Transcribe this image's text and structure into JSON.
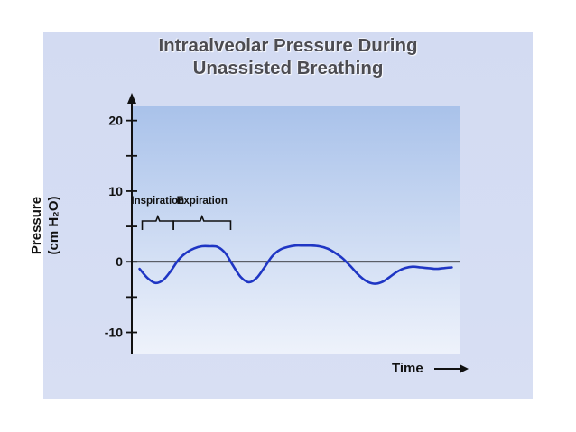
{
  "chart_data": {
    "type": "line",
    "title": [
      "Intraalveolar Pressure During",
      "Unassisted Breathing"
    ],
    "xlabel": "Time",
    "ylabel": [
      "Pressure",
      "(cm H₂O)"
    ],
    "ylim": [
      -13,
      22
    ],
    "xlim": [
      0,
      12.6
    ],
    "yticks_labeled": [
      20,
      10,
      0,
      -10
    ],
    "ytick_labels": [
      "20",
      "10",
      "0",
      "-10"
    ],
    "yticks_minor": [
      15,
      5,
      -5
    ],
    "x": [
      0.3,
      0.6,
      0.9,
      1.2,
      1.5,
      1.8,
      2.1,
      2.4,
      2.7,
      3.0,
      3.3,
      3.6,
      3.9,
      4.2,
      4.5,
      4.8,
      5.1,
      5.4,
      5.7,
      6.0,
      6.3,
      6.6,
      6.9,
      7.2,
      7.5,
      7.8,
      8.1,
      8.4,
      8.7,
      9.0,
      9.3,
      9.6,
      9.9,
      10.2,
      10.5,
      10.8,
      11.1,
      11.4,
      11.7,
      12.0,
      12.3
    ],
    "series": [
      {
        "values": [
          -1.0,
          -2.3,
          -3.0,
          -2.6,
          -1.3,
          0.3,
          1.3,
          1.9,
          2.2,
          2.2,
          2.1,
          1.2,
          -0.6,
          -2.2,
          -2.9,
          -2.3,
          -0.8,
          0.8,
          1.7,
          2.1,
          2.3,
          2.3,
          2.3,
          2.2,
          1.9,
          1.3,
          0.5,
          -0.6,
          -1.8,
          -2.7,
          -3.1,
          -2.9,
          -2.2,
          -1.4,
          -0.9,
          -0.7,
          -0.8,
          -0.9,
          -1.0,
          -0.9,
          -0.8
        ],
        "color": "#1f36c4"
      }
    ],
    "annotations": [
      {
        "text": "Inspiration",
        "x_range": [
          0.4,
          1.6
        ]
      },
      {
        "text": "Expiration",
        "x_range": [
          1.6,
          3.8
        ]
      }
    ],
    "grid": false,
    "plot_background": "#a9c2ea",
    "plot_background_bottom": "#eef2fb",
    "axis_color": "#111111",
    "zero_line": true
  }
}
